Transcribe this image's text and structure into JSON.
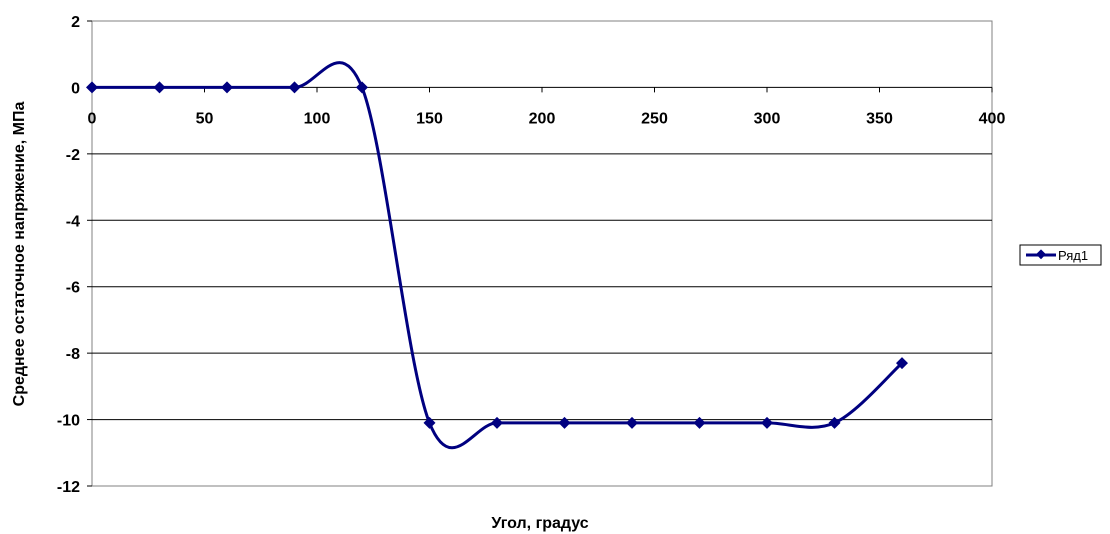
{
  "chart_data": {
    "type": "line",
    "title": "",
    "xlabel": "Угол, градус",
    "ylabel": "Среднее остаточное напряжение, МПа",
    "xlim": [
      0,
      400
    ],
    "ylim": [
      -12,
      2
    ],
    "xticks": [
      0,
      50,
      100,
      150,
      200,
      250,
      300,
      350,
      400
    ],
    "yticks": [
      2,
      0,
      -2,
      -4,
      -6,
      -8,
      -10,
      -12
    ],
    "grid": "horizontal",
    "legend_position": "right",
    "smooth": true,
    "series": [
      {
        "name": "Ряд1",
        "color": "#000080",
        "marker": "diamond",
        "x": [
          0,
          30,
          60,
          90,
          120,
          150,
          180,
          210,
          240,
          270,
          300,
          330,
          360
        ],
        "y": [
          0,
          0,
          0,
          0,
          0,
          -10.1,
          -10.1,
          -10.1,
          -10.1,
          -10.1,
          -10.1,
          -10.1,
          -8.3
        ]
      }
    ]
  }
}
